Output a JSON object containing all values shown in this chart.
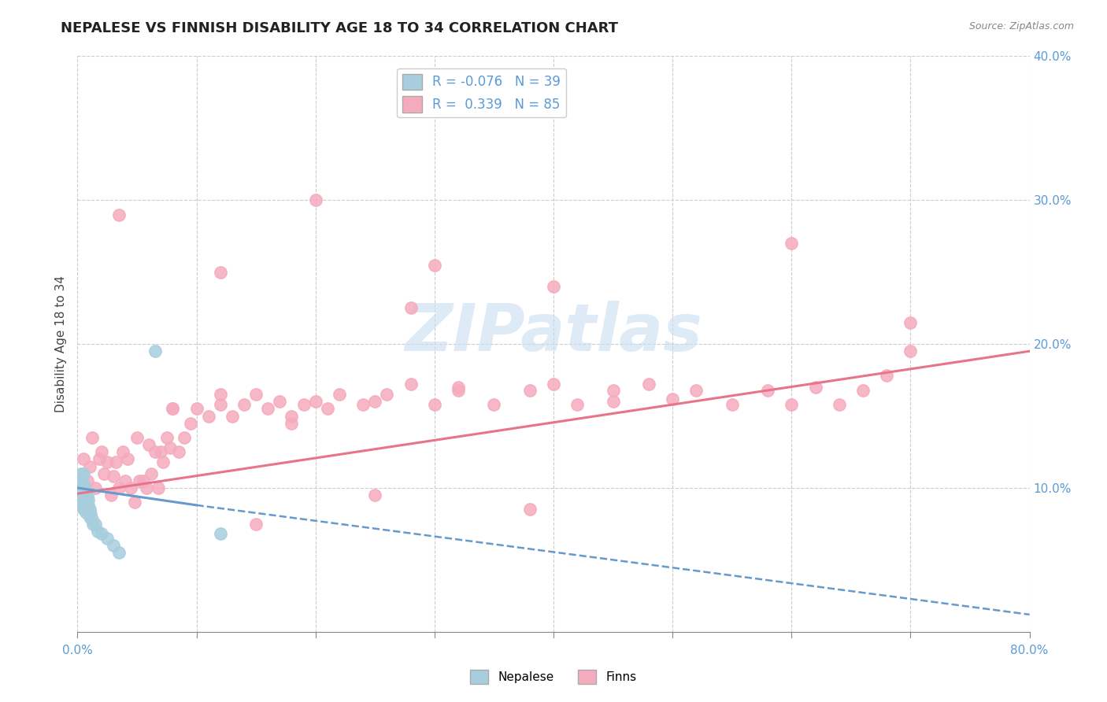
{
  "title": "NEPALESE VS FINNISH DISABILITY AGE 18 TO 34 CORRELATION CHART",
  "source_text": "Source: ZipAtlas.com",
  "ylabel": "Disability Age 18 to 34",
  "xlim": [
    0.0,
    0.8
  ],
  "ylim": [
    0.0,
    0.4
  ],
  "xticks": [
    0.0,
    0.1,
    0.2,
    0.3,
    0.4,
    0.5,
    0.6,
    0.7,
    0.8
  ],
  "yticks": [
    0.0,
    0.1,
    0.2,
    0.3,
    0.4
  ],
  "xtick_labels_show": [
    "0.0%",
    "80.0%"
  ],
  "xtick_labels_pos": [
    0.0,
    0.8
  ],
  "ytick_labels_show": [
    "10.0%",
    "20.0%",
    "30.0%",
    "40.0%"
  ],
  "ytick_labels_pos": [
    0.1,
    0.2,
    0.3,
    0.4
  ],
  "legend_R_nepalese": "-0.076",
  "legend_N_nepalese": "39",
  "legend_R_finns": "0.339",
  "legend_N_finns": "85",
  "nepalese_color": "#A8CEDE",
  "finns_color": "#F5ABBE",
  "nepalese_line_color": "#6699CC",
  "finns_line_color": "#E8748A",
  "background_color": "#FFFFFF",
  "grid_color": "#CCCCCC",
  "watermark_text": "ZIPatlas",
  "watermark_color": "#C8DFF0",
  "title_fontsize": 13,
  "axis_label_fontsize": 11,
  "tick_fontsize": 11,
  "legend_fontsize": 12,
  "tick_color": "#5B9BD5",
  "nepalese_x": [
    0.002,
    0.002,
    0.002,
    0.003,
    0.003,
    0.003,
    0.003,
    0.003,
    0.004,
    0.004,
    0.004,
    0.004,
    0.005,
    0.005,
    0.005,
    0.005,
    0.006,
    0.006,
    0.006,
    0.007,
    0.007,
    0.007,
    0.008,
    0.008,
    0.009,
    0.009,
    0.01,
    0.01,
    0.011,
    0.012,
    0.013,
    0.015,
    0.017,
    0.02,
    0.025,
    0.03,
    0.035,
    0.065,
    0.12
  ],
  "nepalese_y": [
    0.1,
    0.095,
    0.105,
    0.11,
    0.098,
    0.092,
    0.088,
    0.095,
    0.105,
    0.1,
    0.095,
    0.088,
    0.11,
    0.102,
    0.095,
    0.085,
    0.1,
    0.092,
    0.085,
    0.098,
    0.088,
    0.083,
    0.095,
    0.085,
    0.092,
    0.088,
    0.085,
    0.08,
    0.082,
    0.078,
    0.075,
    0.075,
    0.07,
    0.068,
    0.065,
    0.06,
    0.055,
    0.195,
    0.068
  ],
  "finns_x": [
    0.005,
    0.008,
    0.01,
    0.012,
    0.015,
    0.018,
    0.02,
    0.022,
    0.025,
    0.028,
    0.03,
    0.032,
    0.035,
    0.038,
    0.04,
    0.042,
    0.045,
    0.048,
    0.05,
    0.052,
    0.055,
    0.058,
    0.06,
    0.062,
    0.065,
    0.068,
    0.07,
    0.072,
    0.075,
    0.078,
    0.08,
    0.085,
    0.09,
    0.095,
    0.1,
    0.11,
    0.12,
    0.13,
    0.14,
    0.15,
    0.16,
    0.17,
    0.18,
    0.19,
    0.2,
    0.21,
    0.22,
    0.24,
    0.25,
    0.26,
    0.28,
    0.3,
    0.32,
    0.35,
    0.38,
    0.4,
    0.42,
    0.45,
    0.48,
    0.5,
    0.52,
    0.55,
    0.58,
    0.6,
    0.62,
    0.64,
    0.66,
    0.68,
    0.7,
    0.035,
    0.08,
    0.12,
    0.2,
    0.3,
    0.4,
    0.12,
    0.28,
    0.38,
    0.25,
    0.18,
    0.45,
    0.32,
    0.6,
    0.7,
    0.15
  ],
  "finns_y": [
    0.12,
    0.105,
    0.115,
    0.135,
    0.1,
    0.12,
    0.125,
    0.11,
    0.118,
    0.095,
    0.108,
    0.118,
    0.1,
    0.125,
    0.105,
    0.12,
    0.1,
    0.09,
    0.135,
    0.105,
    0.105,
    0.1,
    0.13,
    0.11,
    0.125,
    0.1,
    0.125,
    0.118,
    0.135,
    0.128,
    0.155,
    0.125,
    0.135,
    0.145,
    0.155,
    0.15,
    0.158,
    0.15,
    0.158,
    0.165,
    0.155,
    0.16,
    0.15,
    0.158,
    0.16,
    0.155,
    0.165,
    0.158,
    0.16,
    0.165,
    0.172,
    0.158,
    0.168,
    0.158,
    0.168,
    0.172,
    0.158,
    0.168,
    0.172,
    0.162,
    0.168,
    0.158,
    0.168,
    0.158,
    0.17,
    0.158,
    0.168,
    0.178,
    0.195,
    0.29,
    0.155,
    0.165,
    0.3,
    0.255,
    0.24,
    0.25,
    0.225,
    0.085,
    0.095,
    0.145,
    0.16,
    0.17,
    0.27,
    0.215,
    0.075
  ],
  "finns_line_start_x": 0.0,
  "finns_line_start_y": 0.096,
  "finns_line_end_x": 0.8,
  "finns_line_end_y": 0.195,
  "nepalese_line_solid_start_x": 0.0,
  "nepalese_line_solid_start_y": 0.1,
  "nepalese_line_solid_end_x": 0.1,
  "nepalese_line_solid_end_y": 0.088,
  "nepalese_line_dash_start_x": 0.1,
  "nepalese_line_dash_start_y": 0.088,
  "nepalese_line_dash_end_x": 0.8,
  "nepalese_line_dash_end_y": 0.012
}
